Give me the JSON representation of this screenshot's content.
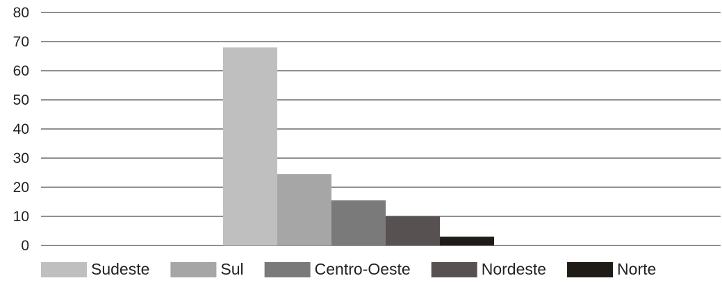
{
  "chart_data": {
    "type": "bar",
    "title": "",
    "xlabel": "",
    "ylabel": "",
    "ylim": [
      0,
      80
    ],
    "yticks": [
      0,
      10,
      20,
      30,
      40,
      50,
      60,
      70,
      80
    ],
    "grid": true,
    "legend_position": "bottom",
    "series": [
      {
        "name": "Sudeste",
        "value": 68,
        "color": "#bfbfbf"
      },
      {
        "name": "Sul",
        "value": 24.5,
        "color": "#a6a6a6"
      },
      {
        "name": "Centro-Oeste",
        "value": 15.5,
        "color": "#7a7a7a"
      },
      {
        "name": "Nordeste",
        "value": 10,
        "color": "#575151"
      },
      {
        "name": "Norte",
        "value": 3,
        "color": "#1f1b17"
      }
    ]
  }
}
